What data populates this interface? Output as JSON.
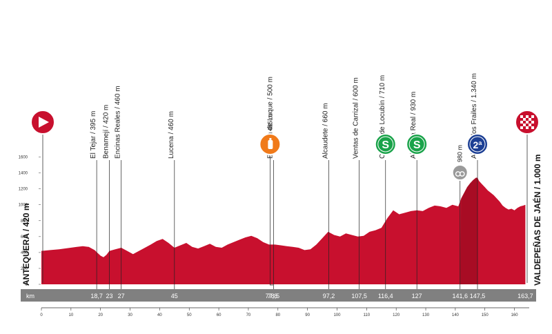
{
  "chart_data": {
    "type": "area",
    "title": "",
    "xlabel": "",
    "ylabel": "",
    "km_label": "km",
    "xlim": [
      0,
      165
    ],
    "ylim": [
      0,
      1700
    ],
    "y_ticks": [
      0,
      200,
      400,
      600,
      800,
      1000,
      1200,
      1400,
      1600
    ],
    "x_ticks": [
      0,
      10,
      20,
      30,
      40,
      50,
      60,
      70,
      80,
      90,
      100,
      110,
      120,
      130,
      140,
      150,
      160
    ],
    "colors": {
      "fill": "#c8102e",
      "shade": "#8e0a1e",
      "band": "#808080"
    },
    "start_label": "ANTEQUERA / 420 m",
    "finish_label": "VALDEPEÑAS DE JAÉN / 1.000 m",
    "start_icon": "start-arrow-icon",
    "finish_icon": "finish-flag-icon",
    "waypoints": [
      {
        "km": 18.7,
        "km_label": "18,7",
        "label": "El Tejar / 395 m",
        "elev": 395
      },
      {
        "km": 23,
        "km_label": "23",
        "label": "Benamejí / 420 m",
        "elev": 420
      },
      {
        "km": 27,
        "km_label": "27",
        "label": "Encinas Reales / 460 m",
        "elev": 460
      },
      {
        "km": 45,
        "km_label": "45",
        "label": "Lucena / 460 m",
        "elev": 460
      },
      {
        "km": 78.5,
        "km_label": "78,5",
        "label": "Estación de Luque / 500 m",
        "elev": 500
      },
      {
        "km": 97.2,
        "km_label": "97,2",
        "label": "Alcaudete / 660 m",
        "elev": 660
      },
      {
        "km": 107.5,
        "km_label": "107,5",
        "label": "Ventas de Carrizal / 600 m",
        "elev": 600
      },
      {
        "km": 116.4,
        "km_label": "116,4",
        "label": "Castillo de Locubín / 710 m",
        "elev": 710
      },
      {
        "km": 127,
        "km_label": "127",
        "label": "Alcalá la Real / 930 m",
        "elev": 930
      },
      {
        "km": 147.5,
        "km_label": "147,5",
        "label": "Alto de los Frailes / 1.340 m",
        "elev": 1340
      }
    ],
    "km_band_extra": [
      {
        "km": 77.8,
        "label": "77,8"
      },
      {
        "km": 141.6,
        "label": "141,6"
      },
      {
        "km": 163.7,
        "label": "163,7"
      }
    ],
    "markers": [
      {
        "type": "feed",
        "icon": "feed-zone-icon",
        "km": 77.8,
        "label": "485 m"
      },
      {
        "type": "sprint",
        "icon": "sprint-icon",
        "km": 116.4,
        "symbol": "S"
      },
      {
        "type": "sprint",
        "icon": "sprint-icon",
        "km": 127,
        "symbol": "S"
      },
      {
        "type": "climb",
        "icon": "climb-category-2-icon",
        "km": 147.5,
        "symbol": "2ª"
      },
      {
        "type": "climb-start",
        "icon": "climb-start-icon",
        "km": 141.6,
        "label": "980 m"
      }
    ],
    "profile": {
      "x": [
        0,
        3,
        6,
        9,
        12,
        14,
        16,
        18,
        19,
        20,
        21,
        22,
        23,
        25,
        27,
        29,
        31,
        33,
        35,
        37,
        39,
        41,
        43,
        45,
        47,
        49,
        51,
        53,
        55,
        57,
        59,
        61,
        63,
        65,
        67,
        69,
        71,
        73,
        75,
        77,
        79,
        81,
        83,
        85,
        87,
        89,
        91,
        93,
        95,
        97,
        99,
        101,
        103,
        105,
        107,
        109,
        111,
        113,
        115,
        117,
        119,
        121,
        123,
        125,
        127,
        129,
        131,
        133,
        135,
        137,
        139,
        141,
        142,
        143,
        144,
        145,
        146,
        147,
        147.5,
        148,
        149,
        150,
        151,
        152,
        153,
        154,
        155,
        156,
        157,
        158,
        159,
        160,
        161,
        162,
        163,
        163.7
      ],
      "y": [
        420,
        430,
        440,
        455,
        470,
        480,
        470,
        430,
        395,
        360,
        340,
        370,
        420,
        440,
        460,
        420,
        380,
        420,
        460,
        500,
        545,
        570,
        520,
        460,
        490,
        520,
        470,
        450,
        480,
        510,
        470,
        460,
        500,
        530,
        560,
        590,
        610,
        580,
        530,
        500,
        500,
        490,
        480,
        470,
        460,
        430,
        440,
        500,
        580,
        660,
        620,
        600,
        640,
        620,
        600,
        610,
        660,
        680,
        710,
        830,
        930,
        880,
        900,
        920,
        930,
        920,
        960,
        990,
        980,
        960,
        1000,
        980,
        1080,
        1150,
        1220,
        1270,
        1310,
        1340,
        1340,
        1300,
        1260,
        1220,
        1180,
        1150,
        1120,
        1080,
        1040,
        990,
        960,
        940,
        950,
        930,
        960,
        980,
        990,
        1000
      ]
    }
  }
}
